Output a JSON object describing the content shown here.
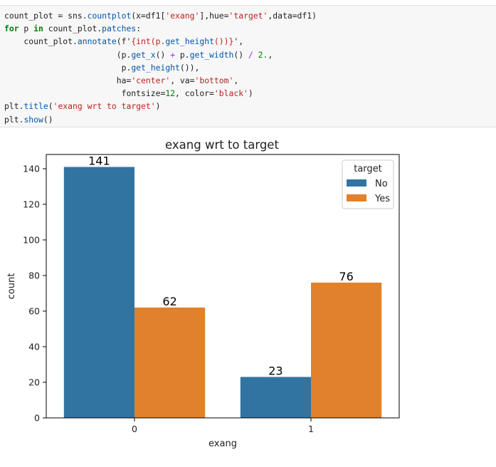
{
  "code_cell": {
    "lines": [
      [
        {
          "t": "count_plot = sns.",
          "c": ""
        },
        {
          "t": "countplot",
          "c": "fn"
        },
        {
          "t": "(x=df1[",
          "c": ""
        },
        {
          "t": "'exang'",
          "c": "str"
        },
        {
          "t": "],hue=",
          "c": ""
        },
        {
          "t": "'target'",
          "c": "str"
        },
        {
          "t": ",data=df1)",
          "c": ""
        }
      ],
      [
        {
          "t": "for",
          "c": "kw"
        },
        {
          "t": " p ",
          "c": ""
        },
        {
          "t": "in",
          "c": "kw"
        },
        {
          "t": " count_plot.",
          "c": ""
        },
        {
          "t": "patches",
          "c": "fn"
        },
        {
          "t": ":",
          "c": ""
        }
      ],
      [
        {
          "t": "    count_plot.",
          "c": ""
        },
        {
          "t": "annotate",
          "c": "fn"
        },
        {
          "t": "(f'",
          "c": ""
        },
        {
          "t": "{int(p.",
          "c": "str"
        },
        {
          "t": "get_height",
          "c": "fn"
        },
        {
          "t": "())}",
          "c": "str"
        },
        {
          "t": "',",
          "c": ""
        }
      ],
      [
        {
          "t": "                       (p.",
          "c": ""
        },
        {
          "t": "get_x",
          "c": "fn"
        },
        {
          "t": "() ",
          "c": ""
        },
        {
          "t": "+",
          "c": "op"
        },
        {
          "t": " p.",
          "c": ""
        },
        {
          "t": "get_width",
          "c": "fn"
        },
        {
          "t": "() ",
          "c": ""
        },
        {
          "t": "/",
          "c": "op"
        },
        {
          "t": " ",
          "c": ""
        },
        {
          "t": "2.",
          "c": "num"
        },
        {
          "t": ",",
          "c": ""
        }
      ],
      [
        {
          "t": "                        p.",
          "c": ""
        },
        {
          "t": "get_height",
          "c": "fn"
        },
        {
          "t": "()),",
          "c": ""
        }
      ],
      [
        {
          "t": "                       ha=",
          "c": ""
        },
        {
          "t": "'center'",
          "c": "str"
        },
        {
          "t": ", va=",
          "c": ""
        },
        {
          "t": "'bottom'",
          "c": "str"
        },
        {
          "t": ",",
          "c": ""
        }
      ],
      [
        {
          "t": "                        fontsize=",
          "c": ""
        },
        {
          "t": "12",
          "c": "num"
        },
        {
          "t": ", color=",
          "c": ""
        },
        {
          "t": "'black'",
          "c": "str"
        },
        {
          "t": ")",
          "c": ""
        }
      ],
      [
        {
          "t": "plt.",
          "c": ""
        },
        {
          "t": "title",
          "c": "fn"
        },
        {
          "t": "(",
          "c": ""
        },
        {
          "t": "'exang wrt to target'",
          "c": "str"
        },
        {
          "t": ")",
          "c": ""
        }
      ],
      [
        {
          "t": "plt.",
          "c": ""
        },
        {
          "t": "show",
          "c": "fn"
        },
        {
          "t": "()",
          "c": ""
        }
      ]
    ]
  },
  "chart_data": {
    "type": "bar",
    "title": "exang wrt to target",
    "xlabel": "exang",
    "ylabel": "count",
    "categories": [
      "0",
      "1"
    ],
    "series": [
      {
        "name": "No",
        "color": "#3274a1",
        "values": [
          141,
          23
        ]
      },
      {
        "name": "Yes",
        "color": "#e1812c",
        "values": [
          62,
          76
        ]
      }
    ],
    "data_labels": [
      [
        "141",
        "23"
      ],
      [
        "62",
        "76"
      ]
    ],
    "ylim": [
      0,
      148
    ],
    "yticks": [
      0,
      20,
      40,
      60,
      80,
      100,
      120,
      140
    ],
    "legend": {
      "title": "target",
      "placement": "top-right"
    },
    "grid": false
  }
}
